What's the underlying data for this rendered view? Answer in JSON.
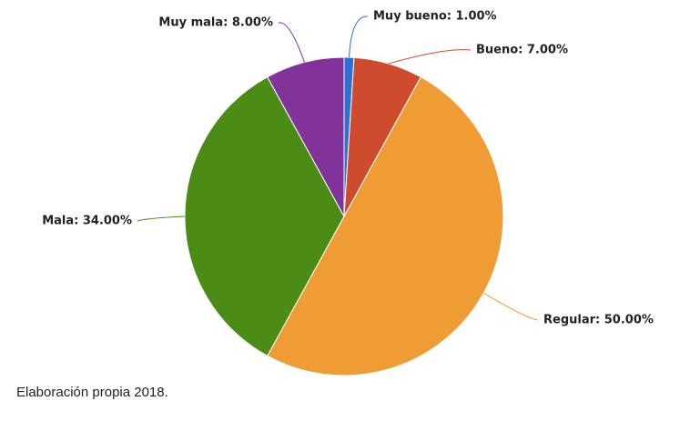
{
  "chart_data": {
    "type": "pie",
    "values": [
      1,
      7,
      50,
      34,
      8
    ],
    "value_labels": [
      "Muy bueno: 1.00%",
      "Bueno: 7.00%",
      "Regular: 50.00%",
      "Mala: 34.00%",
      "Muy mala: 8.00%"
    ],
    "colors": [
      "#2f6fd6",
      "#cf4b2e",
      "#f09c35",
      "#4b8c16",
      "#82339a"
    ],
    "source": "Elaboración propia 2018."
  }
}
